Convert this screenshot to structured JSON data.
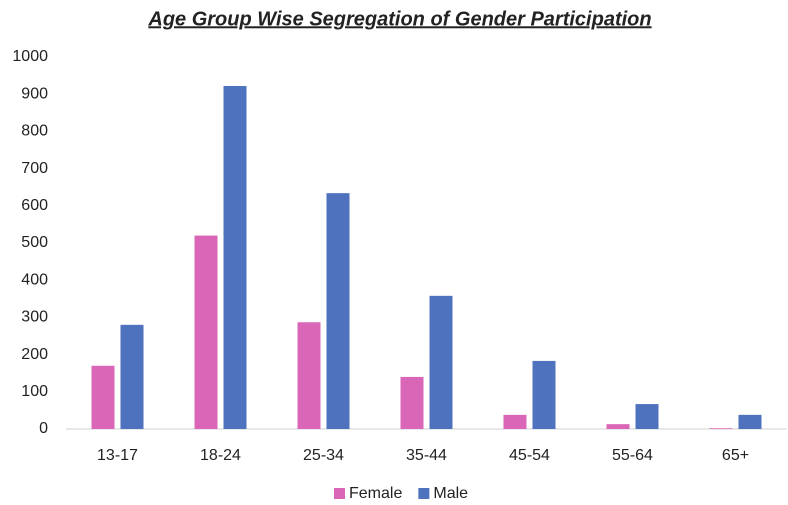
{
  "chart_data": {
    "type": "bar",
    "title": "Age Group Wise Segregation of Gender Participation",
    "categories": [
      "13-17",
      "18-24",
      "25-34",
      "35-44",
      "45-54",
      "55-64",
      "65+"
    ],
    "series": [
      {
        "name": "Female",
        "color": "#d966b6",
        "values": [
          170,
          520,
          287,
          140,
          38,
          13,
          2
        ]
      },
      {
        "name": "Male",
        "color": "#4f72be",
        "values": [
          280,
          922,
          634,
          358,
          183,
          67,
          38
        ]
      }
    ],
    "ylim": [
      0,
      1000
    ],
    "yticks": [
      0,
      100,
      200,
      300,
      400,
      500,
      600,
      700,
      800,
      900,
      1000
    ],
    "grid": false,
    "legend": "bottom"
  }
}
